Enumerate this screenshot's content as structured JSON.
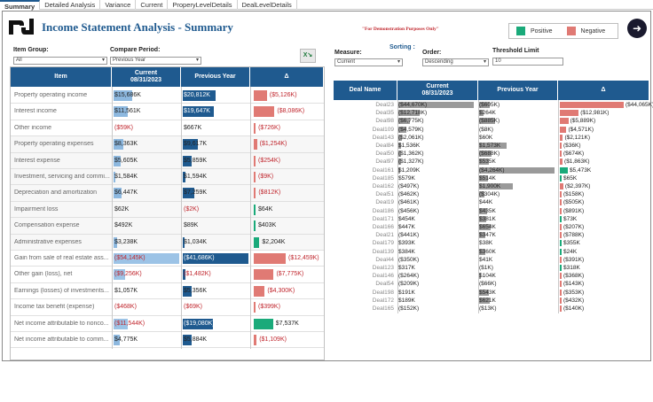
{
  "tabs": [
    "Summary",
    "Detailed Analysis",
    "Variance",
    "Current",
    "ProperyLevelDetails",
    "DealLevelDetails"
  ],
  "title": "Income Statement Analysis - Summary",
  "demo_note": "\"For Demonstration Purposes Only\"",
  "legend": {
    "positive": "Positive",
    "negative": "Negative",
    "pos_color": "#1aaa7a",
    "neg_color": "#e07a74"
  },
  "nav_icon": "arrow-right-icon",
  "filters": {
    "item_group_label": "Item Group:",
    "item_group_value": "All",
    "compare_label": "Compare Period:",
    "compare_value": "Previous Year",
    "sorting_label": "Sorting :",
    "measure_label": "Measure:",
    "measure_value": "Current",
    "order_label": "Order:",
    "order_value": "Descending",
    "threshold_label": "Threshold Limit",
    "threshold_value": "10"
  },
  "left_table": {
    "headers": {
      "item": "Item",
      "current": "Current\n08/31/2023",
      "previous": "Previous Year",
      "delta": "Δ"
    },
    "rows": [
      {
        "item": "Property operating income",
        "cur": "$15,686K",
        "cv": 15686,
        "prev": "$20,812K",
        "pv": 20812,
        "delta": "($5,126K)",
        "dv": -5126,
        "shade": false
      },
      {
        "item": "Interest income",
        "cur": "$11,561K",
        "cv": 11561,
        "prev": "$19,647K",
        "pv": 19647,
        "delta": "($8,086K)",
        "dv": -8086,
        "shade": false
      },
      {
        "item": "Other income",
        "cur": "($59K)",
        "cv": -59,
        "prev": "$667K",
        "pv": 667,
        "delta": "($726K)",
        "dv": -726,
        "shade": false
      },
      {
        "item": "Property operating expenses",
        "cur": "$8,363K",
        "cv": 8363,
        "prev": "$9,617K",
        "pv": 9617,
        "delta": "($1,254K)",
        "dv": -1254,
        "shade": true
      },
      {
        "item": "Interest expense",
        "cur": "$5,605K",
        "cv": 5605,
        "prev": "$5,859K",
        "pv": 5859,
        "delta": "($254K)",
        "dv": -254,
        "shade": true
      },
      {
        "item": "Investment, servicing and commi...",
        "cur": "$1,584K",
        "cv": 1584,
        "prev": "$1,594K",
        "pv": 1594,
        "delta": "($9K)",
        "dv": -9,
        "shade": true
      },
      {
        "item": "Depreciation and amortization",
        "cur": "$6,447K",
        "cv": 6447,
        "prev": "$7,259K",
        "pv": 7259,
        "delta": "($812K)",
        "dv": -812,
        "shade": true
      },
      {
        "item": "Impairment loss",
        "cur": "$62K",
        "cv": 62,
        "prev": "($2K)",
        "pv": -2,
        "delta": "$64K",
        "dv": 64,
        "shade": true
      },
      {
        "item": "Compensation expense",
        "cur": "$492K",
        "cv": 492,
        "prev": "$89K",
        "pv": 89,
        "delta": "$403K",
        "dv": 403,
        "shade": true
      },
      {
        "item": "Administrative expenses",
        "cur": "$3,238K",
        "cv": 3238,
        "prev": "$1,034K",
        "pv": 1034,
        "delta": "$2,204K",
        "dv": 2204,
        "shade": true
      },
      {
        "item": "Gain from sale of real estate ass...",
        "cur": "($54,145K)",
        "cv": -54145,
        "prev": "($41,686K)",
        "pv": -41686,
        "delta": "($12,459K)",
        "dv": -12459,
        "shade": false
      },
      {
        "item": "Other gain (loss), net",
        "cur": "($9,256K)",
        "cv": -9256,
        "prev": "($1,482K)",
        "pv": -1482,
        "delta": "($7,775K)",
        "dv": -7775,
        "shade": false
      },
      {
        "item": "Earnings (losses) of investments...",
        "cur": "$1,057K",
        "cv": 1057,
        "prev": "$5,356K",
        "pv": 5356,
        "delta": "($4,300K)",
        "dv": -4300,
        "shade": false
      },
      {
        "item": "Income tax benefit (expense)",
        "cur": "($468K)",
        "cv": -468,
        "prev": "($69K)",
        "pv": -69,
        "delta": "($399K)",
        "dv": -399,
        "shade": false
      },
      {
        "item": "Net income attributable to nonco...",
        "cur": "($11,544K)",
        "cv": -11544,
        "prev": "($19,080K)",
        "pv": -19080,
        "delta": "$7,537K",
        "dv": 7537,
        "shade": false
      },
      {
        "item": "Net income attributable to comm...",
        "cur": "$4,775K",
        "cv": 4775,
        "prev": "$5,884K",
        "pv": 5884,
        "delta": "($1,109K)",
        "dv": -1109,
        "shade": false
      }
    ]
  },
  "right_table": {
    "headers": {
      "deal": "Deal Name",
      "current": "Current\n08/31/2023",
      "previous": "Previous Year",
      "delta": "Δ"
    },
    "rows": [
      {
        "deal": "Deal23",
        "cur": "($44,670K)",
        "cv": -44670,
        "prev": "($605K)",
        "pv": -605,
        "delta": "($44,065K)",
        "dv": -44065
      },
      {
        "deal": "Deal35",
        "cur": "($12,718K)",
        "cv": -12718,
        "prev": "$264K",
        "pv": 264,
        "delta": "($12,981K)",
        "dv": -12981
      },
      {
        "deal": "Deal98",
        "cur": "($6,775K)",
        "cv": -6775,
        "prev": "($885K)",
        "pv": -885,
        "delta": "($5,889K)",
        "dv": -5889
      },
      {
        "deal": "Deal109",
        "cur": "($4,579K)",
        "cv": -4579,
        "prev": "($8K)",
        "pv": -8,
        "delta": "($4,571K)",
        "dv": -4571
      },
      {
        "deal": "Deal143",
        "cur": "($2,061K)",
        "cv": -2061,
        "prev": "$60K",
        "pv": 60,
        "delta": "($2,121K)",
        "dv": -2121
      },
      {
        "deal": "Deal84",
        "cur": "$1,536K",
        "cv": 1536,
        "prev": "$1,573K",
        "pv": 1573,
        "delta": "($36K)",
        "dv": -36
      },
      {
        "deal": "Deal50",
        "cur": "($1,362K)",
        "cv": -1362,
        "prev": "($688K)",
        "pv": -688,
        "delta": "($674K)",
        "dv": -674
      },
      {
        "deal": "Deal97",
        "cur": "($1,327K)",
        "cv": -1327,
        "prev": "$535K",
        "pv": 535,
        "delta": "($1,863K)",
        "dv": -1863
      },
      {
        "deal": "Deal161",
        "cur": "$1,209K",
        "cv": 1209,
        "prev": "($4,264K)",
        "pv": -4264,
        "delta": "$5,473K",
        "dv": 5473
      },
      {
        "deal": "Deal185",
        "cur": "$579K",
        "cv": 579,
        "prev": "$514K",
        "pv": 514,
        "delta": "$65K",
        "dv": 65
      },
      {
        "deal": "Deal162",
        "cur": "($497K)",
        "cv": -497,
        "prev": "$1,900K",
        "pv": 1900,
        "delta": "($2,397K)",
        "dv": -2397
      },
      {
        "deal": "Deal51",
        "cur": "($462K)",
        "cv": -462,
        "prev": "($304K)",
        "pv": -304,
        "delta": "($158K)",
        "dv": -158
      },
      {
        "deal": "Deal19",
        "cur": "($461K)",
        "cv": -461,
        "prev": "$44K",
        "pv": 44,
        "delta": "($505K)",
        "dv": -505
      },
      {
        "deal": "Deal186",
        "cur": "($456K)",
        "cv": -456,
        "prev": "$435K",
        "pv": 435,
        "delta": "($891K)",
        "dv": -891
      },
      {
        "deal": "Deal171",
        "cur": "$454K",
        "cv": 454,
        "prev": "$381K",
        "pv": 381,
        "delta": "$73K",
        "dv": 73
      },
      {
        "deal": "Deal166",
        "cur": "$447K",
        "cv": 447,
        "prev": "$654K",
        "pv": 654,
        "delta": "($207K)",
        "dv": -207
      },
      {
        "deal": "Deal21",
        "cur": "($441K)",
        "cv": -441,
        "prev": "$347K",
        "pv": 347,
        "delta": "($788K)",
        "dv": -788
      },
      {
        "deal": "Deal179",
        "cur": "$393K",
        "cv": 393,
        "prev": "$38K",
        "pv": 38,
        "delta": "$355K",
        "dv": 355
      },
      {
        "deal": "Deal139",
        "cur": "$384K",
        "cv": 384,
        "prev": "$360K",
        "pv": 360,
        "delta": "$24K",
        "dv": 24
      },
      {
        "deal": "Deal44",
        "cur": "($350K)",
        "cv": -350,
        "prev": "$41K",
        "pv": 41,
        "delta": "($391K)",
        "dv": -391
      },
      {
        "deal": "Deal123",
        "cur": "$317K",
        "cv": 317,
        "prev": "($1K)",
        "pv": -1,
        "delta": "$318K",
        "dv": 318
      },
      {
        "deal": "Deal146",
        "cur": "($264K)",
        "cv": -264,
        "prev": "$104K",
        "pv": 104,
        "delta": "($368K)",
        "dv": -368
      },
      {
        "deal": "Deal54",
        "cur": "($209K)",
        "cv": -209,
        "prev": "($66K)",
        "pv": -66,
        "delta": "($143K)",
        "dv": -143
      },
      {
        "deal": "Deal198",
        "cur": "$191K",
        "cv": 191,
        "prev": "$543K",
        "pv": 543,
        "delta": "($353K)",
        "dv": -353
      },
      {
        "deal": "Deal172",
        "cur": "$189K",
        "cv": 189,
        "prev": "$621K",
        "pv": 621,
        "delta": "($432K)",
        "dv": -432
      },
      {
        "deal": "Deal165",
        "cur": "($152K)",
        "cv": -152,
        "prev": "($13K)",
        "pv": -13,
        "delta": "($140K)",
        "dv": -140
      }
    ]
  }
}
